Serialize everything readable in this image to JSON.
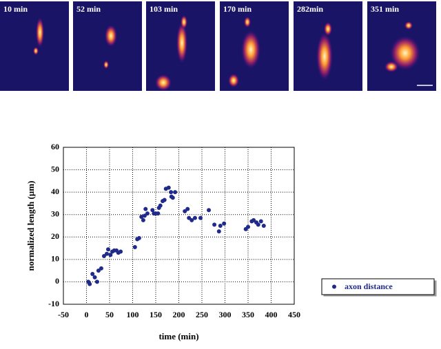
{
  "panels": [
    "10 min",
    "52 min",
    "103 min",
    "170 min",
    "282min",
    "351 min"
  ],
  "chart_data": {
    "type": "scatter",
    "x_label": "time (min)",
    "y_label": "normalized length (µm)",
    "xlim": [
      -50,
      450
    ],
    "xticks": [
      -50,
      0,
      50,
      100,
      150,
      200,
      250,
      300,
      350,
      400,
      450
    ],
    "ylim": [
      -10,
      60
    ],
    "yticks": [
      -10,
      0,
      10,
      20,
      30,
      40,
      50,
      60
    ],
    "grid": true,
    "legend": "right",
    "x": [
      4,
      7,
      13,
      18,
      23,
      26,
      32,
      38,
      44,
      47,
      52,
      56,
      60,
      65,
      69,
      74,
      105,
      110,
      114,
      119,
      123,
      126,
      128,
      132,
      143,
      146,
      150,
      155,
      157,
      160,
      165,
      169,
      172,
      178,
      183,
      184,
      187,
      192,
      213,
      219,
      222,
      228,
      235,
      247,
      265,
      277,
      287,
      290,
      298,
      345,
      350,
      358,
      362,
      368,
      372,
      378,
      384
    ],
    "series": [
      {
        "name": "axon distance",
        "color": "#1f2a8a",
        "values": [
          0,
          -1,
          3.5,
          2,
          0,
          5,
          6,
          11.5,
          12.5,
          14.5,
          12,
          13.5,
          14,
          14,
          13,
          13.5,
          15.5,
          19,
          19.5,
          29,
          27.5,
          29.5,
          32.5,
          30.5,
          32,
          30.5,
          30.5,
          30.5,
          33,
          34,
          36,
          36.5,
          41.5,
          42,
          40,
          38,
          37.5,
          40,
          31.5,
          32.5,
          28.5,
          27.5,
          28.5,
          28.5,
          32,
          25.5,
          22.5,
          25,
          26,
          23.5,
          24.5,
          27,
          27.5,
          26.5,
          25.5,
          27,
          25
        ]
      }
    ]
  }
}
